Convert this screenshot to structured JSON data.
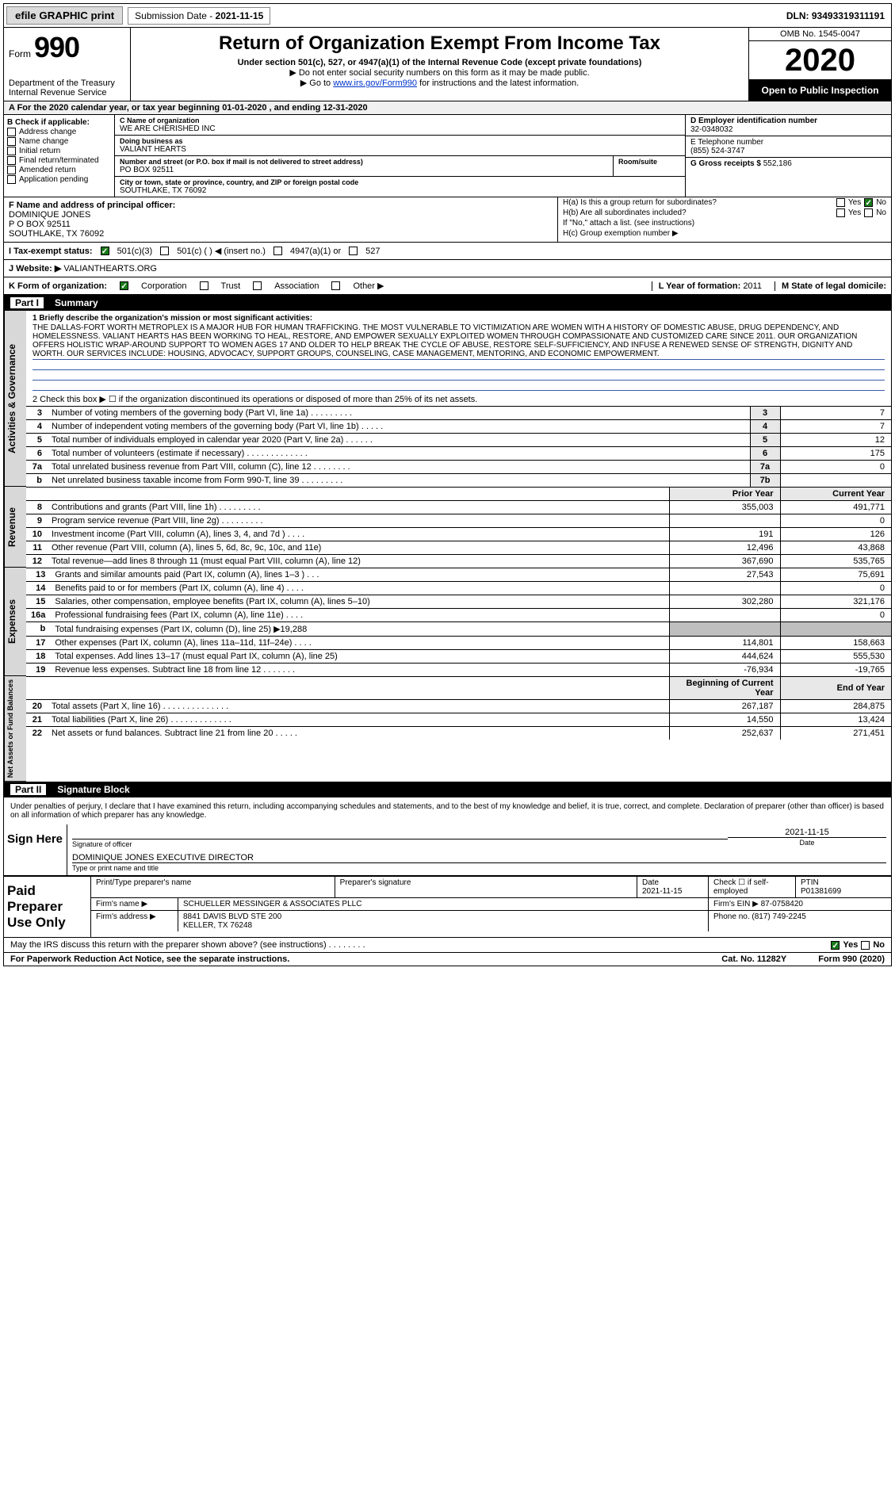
{
  "topbar": {
    "efile_btn": "efile GRAPHIC print",
    "sub_label": "Submission Date - ",
    "sub_date": "2021-11-15",
    "dln": "DLN: 93493319311191"
  },
  "header": {
    "form_word": "Form",
    "form_num": "990",
    "dept": "Department of the Treasury\nInternal Revenue Service",
    "title": "Return of Organization Exempt From Income Tax",
    "subtitle": "Under section 501(c), 527, or 4947(a)(1) of the Internal Revenue Code (except private foundations)",
    "instr1": "▶ Do not enter social security numbers on this form as it may be made public.",
    "instr2_pre": "▶ Go to ",
    "instr2_link": "www.irs.gov/Form990",
    "instr2_post": " for instructions and the latest information.",
    "omb": "OMB No. 1545-0047",
    "year": "2020",
    "inspect": "Open to Public Inspection"
  },
  "a_row": "A For the 2020 calendar year, or tax year beginning 01-01-2020   , and ending 12-31-2020",
  "B": {
    "label": "B Check if applicable:",
    "items": [
      "Address change",
      "Name change",
      "Initial return",
      "Final return/terminated",
      "Amended return",
      "Application pending"
    ]
  },
  "C": {
    "name_label": "C Name of organization",
    "name": "WE ARE CHERISHED INC",
    "dba_label": "Doing business as",
    "dba": "VALIANT HEARTS",
    "addr_label": "Number and street (or P.O. box if mail is not delivered to street address)",
    "addr": "PO BOX 92511",
    "room_label": "Room/suite",
    "city_label": "City or town, state or province, country, and ZIP or foreign postal code",
    "city": "SOUTHLAKE, TX  76092"
  },
  "D": {
    "label": "D Employer identification number",
    "ein": "32-0348032",
    "phone_label": "E Telephone number",
    "phone": "(855) 524-3747",
    "gross_label": "G Gross receipts $",
    "gross": "552,186"
  },
  "F": {
    "label": "F  Name and address of principal officer:",
    "name": "DOMINIQUE JONES",
    "addr1": "P O BOX 92511",
    "addr2": "SOUTHLAKE, TX  76092"
  },
  "H": {
    "ha": "H(a)  Is this a group return for subordinates?",
    "hb": "H(b)  Are all subordinates included?",
    "hb_note": "If \"No,\" attach a list. (see instructions)",
    "hc": "H(c)  Group exemption number ▶"
  },
  "I": {
    "label": "I  Tax-exempt status:",
    "opts": [
      "501(c)(3)",
      "501(c) (  ) ◀ (insert no.)",
      "4947(a)(1) or",
      "527"
    ]
  },
  "J": {
    "label": "J  Website: ▶",
    "val": "VALIANTHEARTS.ORG"
  },
  "K": {
    "label": "K Form of organization:",
    "opts": [
      "Corporation",
      "Trust",
      "Association",
      "Other ▶"
    ]
  },
  "L": {
    "label": "L Year of formation:",
    "val": "2011"
  },
  "M": {
    "label": "M State of legal domicile:"
  },
  "part1": {
    "tag": "Part I",
    "title": "Summary"
  },
  "mission": {
    "lead": "1  Briefly describe the organization's mission or most significant activities:",
    "text": "THE DALLAS-FORT WORTH METROPLEX IS A MAJOR HUB FOR HUMAN TRAFFICKING. THE MOST VULNERABLE TO VICTIMIZATION ARE WOMEN WITH A HISTORY OF DOMESTIC ABUSE, DRUG DEPENDENCY, AND HOMELESSNESS. VALIANT HEARTS HAS BEEN WORKING TO HEAL, RESTORE, AND EMPOWER SEXUALLY EXPLOITED WOMEN THROUGH COMPASSIONATE AND CUSTOMIZED CARE SINCE 2011. OUR ORGANIZATION OFFERS HOLISTIC WRAP-AROUND SUPPORT TO WOMEN AGES 17 AND OLDER TO HELP BREAK THE CYCLE OF ABUSE, RESTORE SELF-SUFFICIENCY, AND INFUSE A RENEWED SENSE OF STRENGTH, DIGNITY AND WORTH. OUR SERVICES INCLUDE: HOUSING, ADVOCACY, SUPPORT GROUPS, COUNSELING, CASE MANAGEMENT, MENTORING, AND ECONOMIC EMPOWERMENT."
  },
  "line2": "2  Check this box ▶ ☐ if the organization discontinued its operations or disposed of more than 25% of its net assets.",
  "gov_lines": [
    {
      "n": "3",
      "d": "Number of voting members of the governing body (Part VI, line 1a)  .   .   .   .   .   .   .   .   .",
      "box": "3",
      "v": "7"
    },
    {
      "n": "4",
      "d": "Number of independent voting members of the governing body (Part VI, line 1b)  .   .   .   .   .",
      "box": "4",
      "v": "7"
    },
    {
      "n": "5",
      "d": "Total number of individuals employed in calendar year 2020 (Part V, line 2a)  .   .   .   .   .   .",
      "box": "5",
      "v": "12"
    },
    {
      "n": "6",
      "d": "Total number of volunteers (estimate if necessary)  .   .   .   .   .   .   .   .   .   .   .   .   .",
      "box": "6",
      "v": "175"
    },
    {
      "n": "7a",
      "d": "Total unrelated business revenue from Part VIII, column (C), line 12  .   .   .   .   .   .   .   .",
      "box": "7a",
      "v": "0"
    },
    {
      "n": "b",
      "d": "Net unrelated business taxable income from Form 990-T, line 39  .   .   .   .   .   .   .   .   .",
      "box": "7b",
      "v": ""
    }
  ],
  "col_hdr": {
    "py": "Prior Year",
    "cy": "Current Year"
  },
  "rev_lines": [
    {
      "n": "8",
      "d": "Contributions and grants (Part VIII, line 1h)  .   .   .   .   .   .   .   .   .",
      "py": "355,003",
      "cy": "491,771"
    },
    {
      "n": "9",
      "d": "Program service revenue (Part VIII, line 2g)  .   .   .   .   .   .   .   .   .",
      "py": "",
      "cy": "0"
    },
    {
      "n": "10",
      "d": "Investment income (Part VIII, column (A), lines 3, 4, and 7d )  .   .   .   .",
      "py": "191",
      "cy": "126"
    },
    {
      "n": "11",
      "d": "Other revenue (Part VIII, column (A), lines 5, 6d, 8c, 9c, 10c, and 11e)",
      "py": "12,496",
      "cy": "43,868"
    },
    {
      "n": "12",
      "d": "Total revenue—add lines 8 through 11 (must equal Part VIII, column (A), line 12)",
      "py": "367,690",
      "cy": "535,765"
    }
  ],
  "exp_lines": [
    {
      "n": "13",
      "d": "Grants and similar amounts paid (Part IX, column (A), lines 1–3 )  .   .   .",
      "py": "27,543",
      "cy": "75,691"
    },
    {
      "n": "14",
      "d": "Benefits paid to or for members (Part IX, column (A), line 4)  .   .   .   .",
      "py": "",
      "cy": "0"
    },
    {
      "n": "15",
      "d": "Salaries, other compensation, employee benefits (Part IX, column (A), lines 5–10)",
      "py": "302,280",
      "cy": "321,176"
    },
    {
      "n": "16a",
      "d": "Professional fundraising fees (Part IX, column (A), line 11e)  .   .   .   .",
      "py": "",
      "cy": "0"
    },
    {
      "n": "b",
      "d": "Total fundraising expenses (Part IX, column (D), line 25) ▶19,288",
      "py": "SHADE",
      "cy": "SHADE"
    },
    {
      "n": "17",
      "d": "Other expenses (Part IX, column (A), lines 11a–11d, 11f–24e)  .   .   .   .",
      "py": "114,801",
      "cy": "158,663"
    },
    {
      "n": "18",
      "d": "Total expenses. Add lines 13–17 (must equal Part IX, column (A), line 25)",
      "py": "444,624",
      "cy": "555,530"
    },
    {
      "n": "19",
      "d": "Revenue less expenses. Subtract line 18 from line 12  .   .   .   .   .   .   .",
      "py": "-76,934",
      "cy": "-19,765"
    }
  ],
  "na_hdr": {
    "b": "Beginning of Current Year",
    "e": "End of Year"
  },
  "na_lines": [
    {
      "n": "20",
      "d": "Total assets (Part X, line 16)  .   .   .   .   .   .   .   .   .   .   .   .   .   .",
      "py": "267,187",
      "cy": "284,875"
    },
    {
      "n": "21",
      "d": "Total liabilities (Part X, line 26)  .   .   .   .   .   .   .   .   .   .   .   .   .",
      "py": "14,550",
      "cy": "13,424"
    },
    {
      "n": "22",
      "d": "Net assets or fund balances. Subtract line 21 from line 20  .   .   .   .   .",
      "py": "252,637",
      "cy": "271,451"
    }
  ],
  "vtabs": {
    "gov": "Activities & Governance",
    "rev": "Revenue",
    "exp": "Expenses",
    "na": "Net Assets or Fund Balances"
  },
  "part2": {
    "tag": "Part II",
    "title": "Signature Block"
  },
  "sig": {
    "perjury": "Under penalties of perjury, I declare that I have examined this return, including accompanying schedules and statements, and to the best of my knowledge and belief, it is true, correct, and complete. Declaration of preparer (other than officer) is based on all information of which preparer has any knowledge.",
    "sign_here": "Sign Here",
    "sig_officer": "Signature of officer",
    "date": "2021-11-15",
    "date_label": "Date",
    "officer_name": "DOMINIQUE JONES  EXECUTIVE DIRECTOR",
    "type_label": "Type or print name and title"
  },
  "paid": {
    "title": "Paid Preparer Use Only",
    "h1": "Print/Type preparer's name",
    "h2": "Preparer's signature",
    "h3": "Date",
    "h3v": "2021-11-15",
    "h4": "Check ☐ if self-employed",
    "h5": "PTIN",
    "h5v": "P01381699",
    "firm_label": "Firm's name    ▶",
    "firm": "SCHUELLER MESSINGER & ASSOCIATES PLLC",
    "ein_label": "Firm's EIN ▶",
    "ein": "87-0758420",
    "addr_label": "Firm's address ▶",
    "addr": "8841 DAVIS BLVD STE 200",
    "addr2": "KELLER, TX  76248",
    "phone_label": "Phone no.",
    "phone": "(817) 749-2245"
  },
  "discuss": {
    "q": "May the IRS discuss this return with the preparer shown above? (see instructions)  .   .   .   .   .   .   .   .",
    "yes": "Yes",
    "no": "No"
  },
  "footer": {
    "pra": "For Paperwork Reduction Act Notice, see the separate instructions.",
    "cat": "Cat. No. 11282Y",
    "form": "Form 990 (2020)"
  }
}
